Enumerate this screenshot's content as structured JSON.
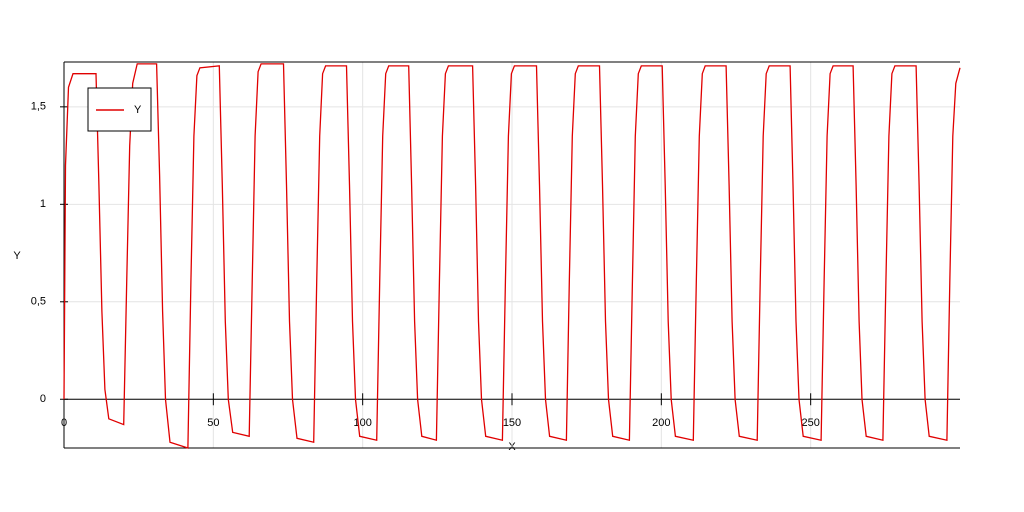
{
  "chart_data": {
    "type": "line",
    "xlabel": "X",
    "ylabel": "Y",
    "x": [
      0,
      0.5,
      1.5,
      3,
      10.7,
      11.7,
      12.7,
      13.7,
      15,
      20,
      21,
      22,
      23,
      24.5,
      31,
      32,
      33,
      34,
      35.5,
      41.5,
      42.5,
      43.5,
      44.5,
      45.5,
      52,
      53,
      54,
      55,
      56.5,
      62,
      63,
      64,
      65,
      66,
      73.5,
      74.5,
      75.5,
      76.5,
      78,
      83.6,
      84.6,
      85.6,
      86.6,
      87.6,
      94.6,
      95.6,
      96.6,
      97.6,
      99,
      104.7,
      105.7,
      106.7,
      107.7,
      108.7,
      115.4,
      116.4,
      117.4,
      118.4,
      119.8,
      124.7,
      125.7,
      126.7,
      127.7,
      128.7,
      136.8,
      137.8,
      138.8,
      139.8,
      141.2,
      146.8,
      147.8,
      148.8,
      149.8,
      150.8,
      158.2,
      159.2,
      160.2,
      161.2,
      162.6,
      168.2,
      169.2,
      170.2,
      171.2,
      172.2,
      179.3,
      180.3,
      181.3,
      182.3,
      183.7,
      189.3,
      190.3,
      191.3,
      192.3,
      193.3,
      200.3,
      201.3,
      202.3,
      203.3,
      204.7,
      210.7,
      211.7,
      212.7,
      213.7,
      214.7,
      221.7,
      222.7,
      223.7,
      224.7,
      226.1,
      232.1,
      233.1,
      234.1,
      235.1,
      236.1,
      243.1,
      244.1,
      245.1,
      246.1,
      247.5,
      253.5,
      254.5,
      255.5,
      256.5,
      257.5,
      264.2,
      265.2,
      266.2,
      267.2,
      268.6,
      274.2,
      275.2,
      276.2,
      277.2,
      278.2,
      285.3,
      286.3,
      287.3,
      288.3,
      289.7,
      295.6,
      296.6,
      297.6,
      298.6,
      300
    ],
    "series": [
      {
        "name": "Y",
        "color": "#e00000",
        "values": [
          0,
          1.2,
          1.6,
          1.67,
          1.67,
          1.1,
          0.45,
          0.05,
          -0.1,
          -0.13,
          0.6,
          1.3,
          1.62,
          1.72,
          1.72,
          1.15,
          0.45,
          0,
          -0.22,
          -0.25,
          0.6,
          1.35,
          1.66,
          1.7,
          1.71,
          1.1,
          0.4,
          0,
          -0.17,
          -0.19,
          0.6,
          1.35,
          1.68,
          1.72,
          1.72,
          1.1,
          0.4,
          0,
          -0.2,
          -0.22,
          0.6,
          1.35,
          1.67,
          1.71,
          1.71,
          1.1,
          0.4,
          0,
          -0.19,
          -0.21,
          0.6,
          1.35,
          1.67,
          1.71,
          1.71,
          1.1,
          0.4,
          0,
          -0.19,
          -0.21,
          0.6,
          1.35,
          1.67,
          1.71,
          1.71,
          1.1,
          0.4,
          0,
          -0.19,
          -0.21,
          0.6,
          1.35,
          1.67,
          1.71,
          1.71,
          1.1,
          0.4,
          0,
          -0.19,
          -0.21,
          0.6,
          1.35,
          1.67,
          1.71,
          1.71,
          1.1,
          0.4,
          0,
          -0.19,
          -0.21,
          0.6,
          1.35,
          1.67,
          1.71,
          1.71,
          1.1,
          0.4,
          0,
          -0.19,
          -0.21,
          0.6,
          1.35,
          1.67,
          1.71,
          1.71,
          1.1,
          0.4,
          0,
          -0.19,
          -0.21,
          0.6,
          1.35,
          1.67,
          1.71,
          1.71,
          1.1,
          0.4,
          0,
          -0.19,
          -0.21,
          0.6,
          1.35,
          1.67,
          1.71,
          1.71,
          1.1,
          0.4,
          0,
          -0.19,
          -0.21,
          0.6,
          1.35,
          1.67,
          1.71,
          1.71,
          1.1,
          0.4,
          0,
          -0.19,
          -0.21,
          0.6,
          1.35,
          1.62,
          1.7
        ]
      }
    ],
    "xlim": [
      0,
      300
    ],
    "ylim": [
      -0.25,
      1.73
    ],
    "xticks": [
      0,
      50,
      100,
      150,
      200,
      250
    ],
    "yticks": [
      0,
      {
        "value": 0.5,
        "label": "0,5"
      },
      1,
      {
        "value": 1.5,
        "label": "1,5"
      }
    ],
    "grid": true,
    "legend": "upper left"
  }
}
